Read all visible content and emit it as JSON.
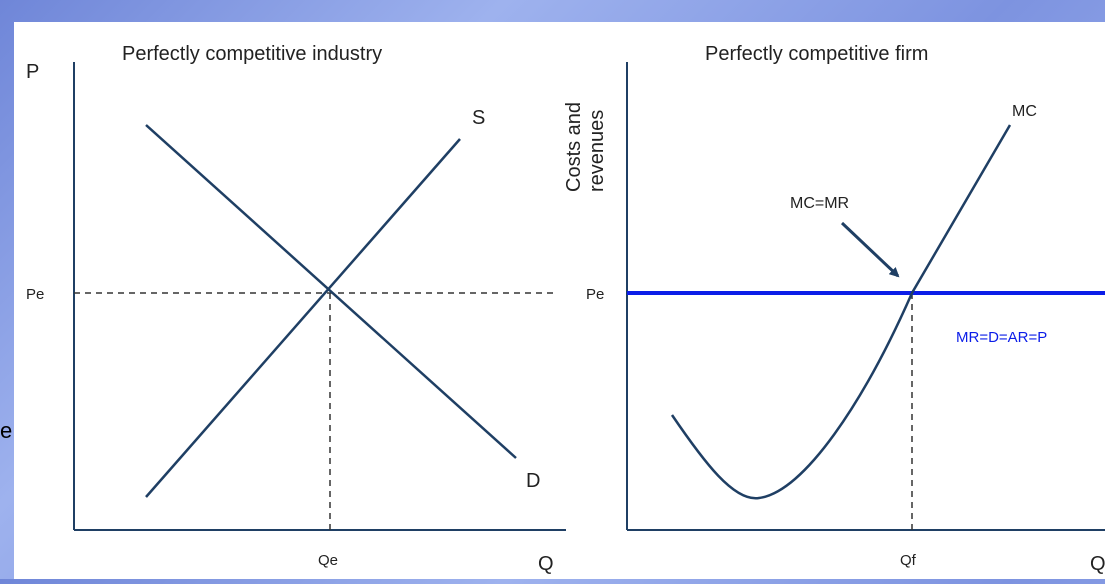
{
  "colors": {
    "axis": "#1f3f64",
    "curve": "#1f3f64",
    "highlight": "#0b1de8",
    "guide": "#333333",
    "text": "#222222"
  },
  "slide": {
    "stray_char": "e"
  },
  "industry": {
    "title": "Perfectly competitive industry",
    "y_axis_label": "P",
    "x_axis_label": "Q",
    "price_label": "Pe",
    "quantity_label": "Qe",
    "supply_label": "S",
    "demand_label": "D"
  },
  "firm": {
    "title": "Perfectly competitive firm",
    "y_axis_label_line1": "Costs and",
    "y_axis_label_line2": "revenues",
    "x_axis_label": "Q",
    "price_label": "Pe",
    "quantity_label": "Qf",
    "mc_label": "MC",
    "equilibrium_label": "MC=MR",
    "revenue_line_label": "MR=D=AR=P"
  }
}
